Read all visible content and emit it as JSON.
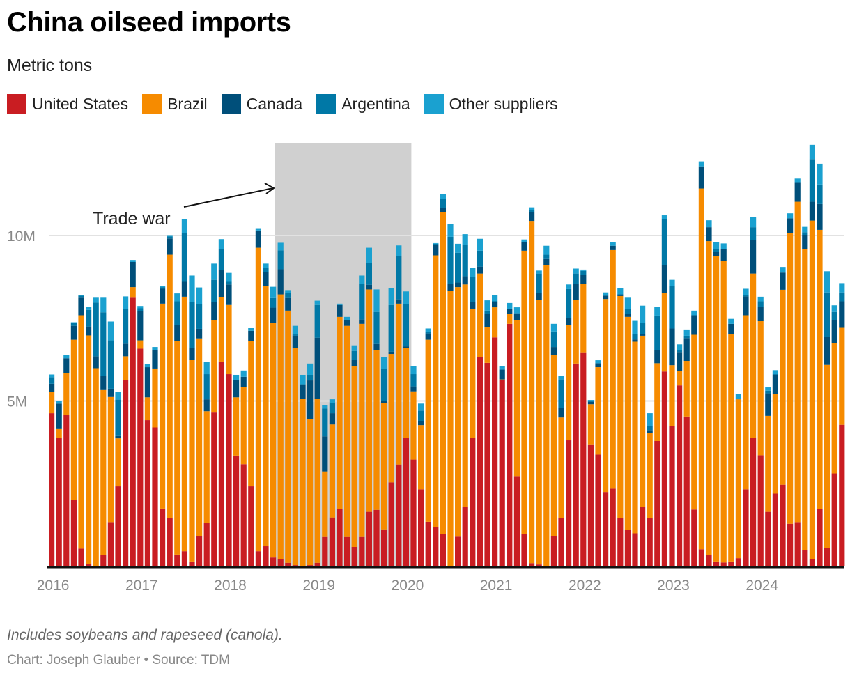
{
  "chart_data": {
    "type": "bar",
    "stacked": true,
    "title": "China oilseed imports",
    "subtitle": "Metric tons",
    "xlabel": "",
    "ylabel": "",
    "ylim": [
      0,
      12800000
    ],
    "y_ticks": [
      {
        "value": 5000000,
        "label": "5M"
      },
      {
        "value": 10000000,
        "label": "10M"
      }
    ],
    "x_tick_labels": [
      "2016",
      "2017",
      "2018",
      "2019",
      "2020",
      "2021",
      "2022",
      "2023",
      "2024"
    ],
    "grid": true,
    "legend_position": "top-left",
    "categories_note": "Monthly, Jan 2016 – Dec 2024",
    "start": "2016-01",
    "series": [
      {
        "name": "United States",
        "color": "#c91d22",
        "values": [
          4.63,
          3.89,
          4.58,
          2.02,
          0.54,
          0.07,
          0,
          0.35,
          1.34,
          2.42,
          5.63,
          8.12,
          6.58,
          4.42,
          4.2,
          1.75,
          1.46,
          0.36,
          0.46,
          0.15,
          0.91,
          1.31,
          4.65,
          6.19,
          5.81,
          3.35,
          3.09,
          2.42,
          0.46,
          0.61,
          0.27,
          0.23,
          0.11,
          0.04,
          0,
          0.04,
          0.11,
          0.89,
          1.48,
          1.73,
          0.89,
          0.59,
          0.89,
          1.65,
          1.71,
          1.12,
          2.54,
          3.08,
          3.88,
          3.23,
          2.33,
          1.35,
          1.19,
          0.98,
          0,
          0.9,
          1.81,
          3.88,
          6.33,
          6.15,
          6.92,
          5.63,
          7.33,
          2.73,
          0.98,
          0.1,
          0.06,
          0,
          0.92,
          1.46,
          3.81,
          6.13,
          6.47,
          3.69,
          3.38,
          2.25,
          2.35,
          1.46,
          1.1,
          1,
          1.81,
          1.46,
          3.79,
          5.89,
          4.25,
          5.47,
          4.53,
          1.72,
          0.52,
          0.35,
          0.15,
          0.12,
          0.15,
          0.25,
          2.33,
          3.88,
          3.36,
          1.65,
          2.2,
          2.47,
          1.29,
          1.34,
          0.5,
          0.22,
          1.74,
          0.56,
          2.81,
          4.28
        ]
      },
      {
        "name": "Brazil",
        "color": "#f68b00",
        "values": [
          0.64,
          0.26,
          1.26,
          4.83,
          7.05,
          6.91,
          5.99,
          4.98,
          3.78,
          1.45,
          0.72,
          0.32,
          0.25,
          0.69,
          1.78,
          6.19,
          7.96,
          6.44,
          7.69,
          6.1,
          5.98,
          3.38,
          2.79,
          1.94,
          2.09,
          1.76,
          2.34,
          4.4,
          9.17,
          7.86,
          7.08,
          7.99,
          7.62,
          6.55,
          5.07,
          4.42,
          4.96,
          1.98,
          2.81,
          5.81,
          6.38,
          5.47,
          6.44,
          6.72,
          4.82,
          3.82,
          3.88,
          4.86,
          2.72,
          2.06,
          1.94,
          5.5,
          8.21,
          9.73,
          8.33,
          7.54,
          6.71,
          3.91,
          2.52,
          1.08,
          0.91,
          0.02,
          0.3,
          4.71,
          8.56,
          10.34,
          8,
          9.1,
          5.48,
          3.04,
          3.48,
          1.93,
          2.06,
          1.21,
          2.64,
          5.83,
          7.21,
          6.71,
          6.44,
          5.79,
          5.16,
          2.58,
          2.35,
          2.37,
          1.83,
          0.43,
          1.68,
          5.28,
          10.9,
          9.48,
          9.23,
          9.11,
          6.86,
          4.8,
          5.26,
          4.97,
          4.05,
          2.9,
          3.02,
          5.89,
          8.79,
          9.68,
          9.1,
          10.23,
          8.43,
          5.53,
          3.93,
          2.93
        ]
      },
      {
        "name": "Canada",
        "color": "#004f7a",
        "values": [
          0.25,
          0.77,
          0.45,
          0.42,
          0.53,
          0.27,
          0.36,
          0.42,
          0.25,
          0.07,
          0.38,
          0.76,
          0.89,
          0.91,
          0.56,
          0.45,
          0.49,
          0.49,
          0.45,
          0.34,
          0.29,
          0.36,
          0.55,
          0.83,
          0.62,
          0.53,
          0.3,
          0.3,
          0.52,
          0.42,
          0.47,
          0.76,
          0.38,
          0.38,
          0.42,
          1.16,
          1.84,
          1.06,
          0.34,
          0.36,
          0.17,
          0.19,
          0.13,
          0.14,
          0.19,
          0.07,
          0.07,
          0.13,
          0.05,
          0.15,
          0.13,
          0.19,
          0.31,
          0.12,
          0.21,
          0.14,
          0.25,
          0.19,
          0.21,
          0.4,
          0.15,
          0.29,
          0.16,
          0.21,
          0.25,
          0.27,
          0.21,
          0.19,
          0.23,
          0.29,
          0.21,
          0.48,
          0.29,
          0.08,
          0.12,
          0.1,
          0.13,
          0.05,
          0.1,
          0.07,
          0.06,
          0.08,
          0.4,
          0.85,
          1.11,
          0.58,
          0.69,
          0.59,
          0.67,
          0.42,
          0.13,
          0.35,
          0.32,
          0.02,
          0.57,
          1.02,
          0.43,
          0.68,
          0.58,
          0.52,
          0.44,
          0.59,
          0.4,
          0.57,
          0.78,
          0.85,
          0.7,
          0.8
        ]
      },
      {
        "name": "Argentina",
        "color": "#0078a6",
        "values": [
          0.2,
          0,
          0,
          0.1,
          0.06,
          0.5,
          1.62,
          1.93,
          1.46,
          1.1,
          1.05,
          0,
          0.08,
          0,
          0,
          0.05,
          0.06,
          0.72,
          1.48,
          1.4,
          0.74,
          0.76,
          0.67,
          0.63,
          0.08,
          0,
          0,
          0,
          0,
          0.13,
          0.29,
          0.57,
          0.15,
          0.04,
          0.02,
          0.17,
          0.99,
          0.84,
          0.31,
          0,
          0,
          0.26,
          1.08,
          0.66,
          0.97,
          0.95,
          1.41,
          1.31,
          1.27,
          0.37,
          0.31,
          0.04,
          0.04,
          0.27,
          1.42,
          0.9,
          0.94,
          0.77,
          0.48,
          0.1,
          0.04,
          0.04,
          0,
          0,
          0,
          0.06,
          0.58,
          0.13,
          0.47,
          0.86,
          0.88,
          0.31,
          0.11,
          0,
          0,
          0,
          0,
          0,
          0.13,
          0.17,
          0.32,
          0.12,
          1.04,
          1.38,
          1.29,
          0.06,
          0.07,
          0,
          0,
          0,
          0.07,
          0,
          0,
          0,
          0.04,
          0.38,
          0.17,
          0.08,
          0,
          0,
          0,
          0,
          0.1,
          1.29,
          0.59,
          1.34,
          0.25,
          0.27
        ]
      },
      {
        "name": "Other suppliers",
        "color": "#1aa1d0",
        "values": [
          0.08,
          0.09,
          0.1,
          0.01,
          0.02,
          0.1,
          0.15,
          0.44,
          0.57,
          0.23,
          0.38,
          0.06,
          0.07,
          0.09,
          0.09,
          0.03,
          0.02,
          0.24,
          0.42,
          0.8,
          0.51,
          0.36,
          0.49,
          0.3,
          0.27,
          0.15,
          0.19,
          0.08,
          0.07,
          0.13,
          0.34,
          0.23,
          0.09,
          0.26,
          0.28,
          0.34,
          0.13,
          0.11,
          0.11,
          0.04,
          0.1,
          0.17,
          0.25,
          0.46,
          0.68,
          0.36,
          0.51,
          0.32,
          0.39,
          0.25,
          0.21,
          0.11,
          0.02,
          0.15,
          0.39,
          0.27,
          0.33,
          0.27,
          0.36,
          0.31,
          0.19,
          0.08,
          0.17,
          0.18,
          0.09,
          0.08,
          0.09,
          0.27,
          0.23,
          0.1,
          0.14,
          0.15,
          0.04,
          0.05,
          0.09,
          0.1,
          0.12,
          0.2,
          0.35,
          0.39,
          0.53,
          0.39,
          0.27,
          0.12,
          0.18,
          0.17,
          0.19,
          0.14,
          0.15,
          0.21,
          0.22,
          0.18,
          0.15,
          0.15,
          0.19,
          0.31,
          0.14,
          0.1,
          0.13,
          0.17,
          0.15,
          0.11,
          0.16,
          0.43,
          0.63,
          0.64,
          0.2,
          0.28
        ]
      }
    ],
    "units": "million metric tons",
    "annotations": [
      {
        "type": "shaded-range",
        "label": "Trade war",
        "start": "2018-07",
        "end": "2020-01"
      }
    ]
  },
  "legend": [
    {
      "label": "United States",
      "color": "#c91d22"
    },
    {
      "label": "Brazil",
      "color": "#f68b00"
    },
    {
      "label": "Canada",
      "color": "#004f7a"
    },
    {
      "label": "Argentina",
      "color": "#0078a6"
    },
    {
      "label": "Other suppliers",
      "color": "#1aa1d0"
    }
  ],
  "footer": {
    "note": "Includes soybeans and rapeseed (canola).",
    "source": "Chart: Joseph Glauber • Source: TDM"
  }
}
